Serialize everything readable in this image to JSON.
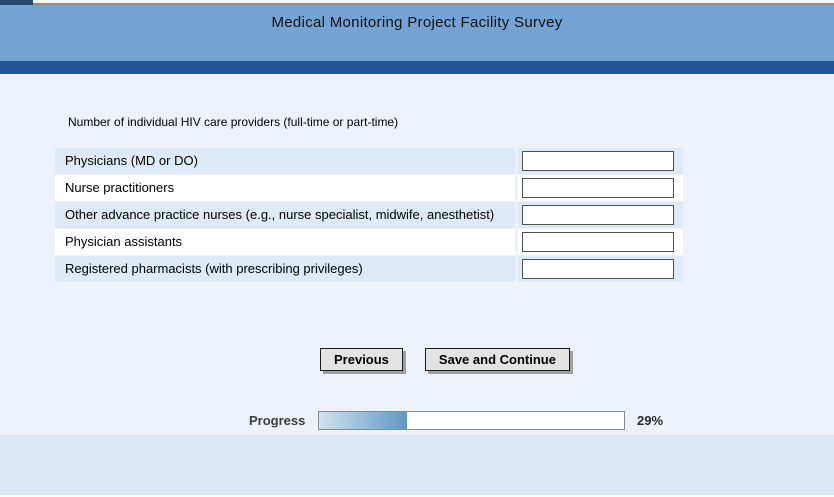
{
  "header": {
    "title": "Medical Monitoring Project Facility Survey"
  },
  "question": {
    "text": "Number of individual HIV care providers (full-time or part-time)"
  },
  "table": {
    "rows": [
      {
        "label": "Physicians (MD or DO)",
        "value": ""
      },
      {
        "label": "Nurse practitioners",
        "value": ""
      },
      {
        "label": "Other advance practice nurses (e.g., nurse specialist, midwife, anesthetist)",
        "value": ""
      },
      {
        "label": "Physician assistants",
        "value": ""
      },
      {
        "label": "Registered pharmacists (with prescribing privileges)",
        "value": ""
      }
    ]
  },
  "buttons": {
    "previous": "Previous",
    "save_continue": "Save and Continue"
  },
  "progress": {
    "label": "Progress",
    "percent": 29,
    "percent_text": "29%"
  },
  "colors": {
    "header_blue": "#74a3d4",
    "stripe_dark_blue": "#1e5696",
    "content_background": "#edf2fa",
    "footer_background": "#dbe7f3",
    "row_highlight": "#ddeaf7",
    "progress_fill_start": "#d3e1ee",
    "progress_fill_end": "#5e99c4"
  }
}
